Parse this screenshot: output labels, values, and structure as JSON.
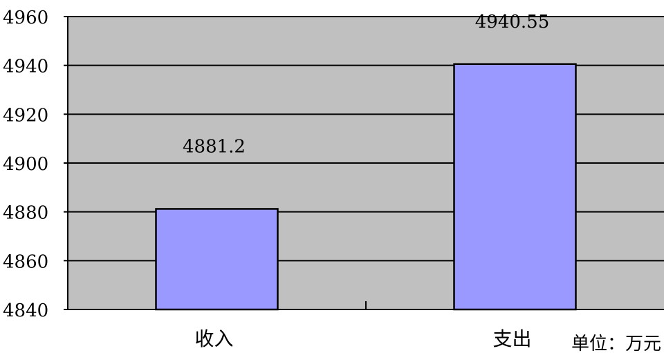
{
  "chart_data": {
    "type": "bar",
    "categories": [
      "收入",
      "支出"
    ],
    "values": [
      4881.2,
      4940.55
    ],
    "data_labels": [
      "4881.2",
      "4940.55"
    ],
    "title": "",
    "xlabel": "",
    "ylabel": "",
    "ylim": [
      4840,
      4960
    ],
    "yticks": [
      4840,
      4860,
      4880,
      4900,
      4920,
      4940,
      4960
    ],
    "unit_note": "单位：万元",
    "grid": true,
    "legend": "none",
    "colors": {
      "plot_background": "#c0c0c0",
      "bar_fill": "#9999ff",
      "bar_stroke": "#000000",
      "gridline": "#000000"
    }
  }
}
